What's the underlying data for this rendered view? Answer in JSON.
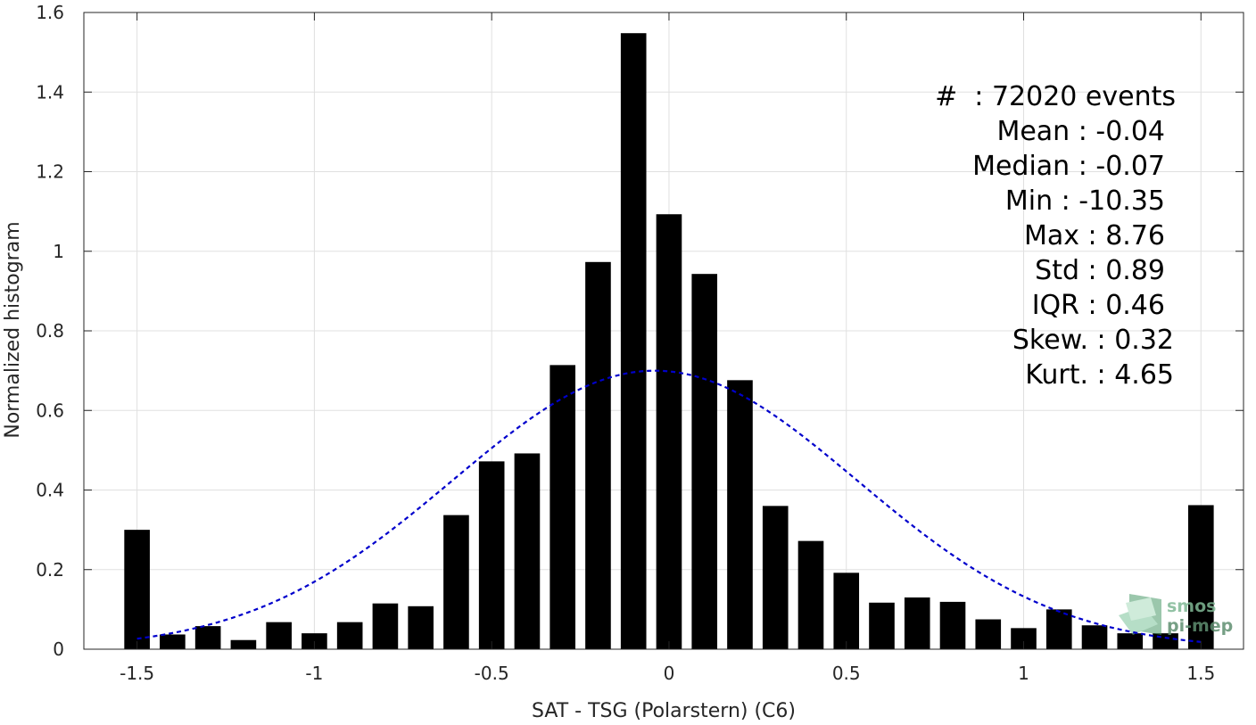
{
  "chart_data": {
    "type": "bar",
    "title": "",
    "xlabel": "SAT - TSG (Polarstern) (C6)",
    "ylabel": "Normalized histogram",
    "xlim": [
      -1.65,
      1.62
    ],
    "ylim": [
      0,
      1.6
    ],
    "xticks": [
      -1.5,
      -1,
      -0.5,
      0,
      0.5,
      1,
      1.5
    ],
    "xtick_labels": [
      "-1.5",
      "-1",
      "-0.5",
      "0",
      "0.5",
      "1",
      "1.5"
    ],
    "yticks": [
      0,
      0.2,
      0.4,
      0.6,
      0.8,
      1,
      1.2,
      1.4,
      1.6
    ],
    "ytick_labels": [
      "0",
      "0.2",
      "0.4",
      "0.6",
      "0.8",
      "1",
      "1.2",
      "1.4",
      "1.6"
    ],
    "grid": true,
    "bar_color": "#000000",
    "bins": [
      -1.5,
      -1.4,
      -1.3,
      -1.2,
      -1.1,
      -1.0,
      -0.9,
      -0.8,
      -0.7,
      -0.6,
      -0.5,
      -0.4,
      -0.3,
      -0.2,
      -0.1,
      0.0,
      0.1,
      0.2,
      0.3,
      0.4,
      0.5,
      0.6,
      0.7,
      0.8,
      0.9,
      1.0,
      1.1,
      1.2,
      1.3,
      1.4,
      1.5
    ],
    "values": [
      0.3,
      0.037,
      0.058,
      0.023,
      0.068,
      0.04,
      0.068,
      0.115,
      0.108,
      0.337,
      0.472,
      0.492,
      0.714,
      0.973,
      1.548,
      1.093,
      0.943,
      0.676,
      0.36,
      0.272,
      0.192,
      0.117,
      0.13,
      0.119,
      0.075,
      0.053,
      0.1,
      0.06,
      0.04,
      0.04,
      0.362
    ],
    "fit_curve": {
      "type": "normal",
      "mean": -0.04,
      "std": 0.57,
      "color": "#0000cc",
      "style": "dashed",
      "x_range": [
        -1.5,
        1.5
      ]
    },
    "stats_annotation": [
      "#  : 72020 events",
      "Mean : -0.04",
      "Median : -0.07",
      "Min : -10.35",
      "Max : 8.76",
      "Std : 0.89",
      "IQR : 0.46",
      "Skew. : 0.32",
      "Kurt. : 4.65"
    ],
    "watermark": {
      "line1": "smos",
      "line2": "pi-mep"
    }
  }
}
